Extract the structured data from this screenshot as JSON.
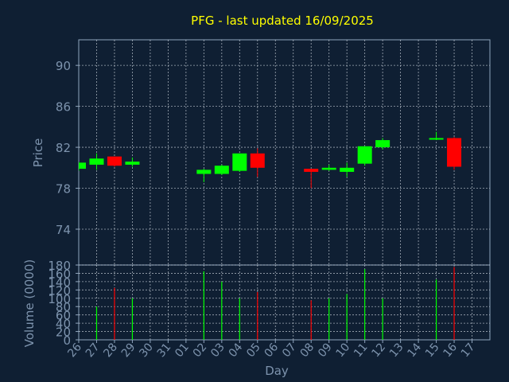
{
  "chart_data": {
    "type": "candlestick",
    "title": "PFG - last updated 16/09/2025",
    "xlabel": "Day",
    "price_panel": {
      "ylabel": "Price",
      "yticks": [
        74,
        78,
        82,
        86,
        90
      ],
      "ylim": [
        70.5,
        92.5
      ]
    },
    "volume_panel": {
      "ylabel": "Volume (0000)",
      "yticks": [
        0,
        20,
        40,
        60,
        80,
        100,
        120,
        140,
        160,
        180
      ],
      "ylim": [
        0,
        180
      ]
    },
    "x_labels": [
      "26",
      "27",
      "28",
      "29",
      "30",
      "31",
      "01",
      "02",
      "03",
      "04",
      "05",
      "06",
      "07",
      "08",
      "09",
      "10",
      "11",
      "12",
      "13",
      "14",
      "15",
      "16",
      "17"
    ],
    "up_color": "#00ff00",
    "down_color": "#ff0000",
    "candles": [
      {
        "day": "26",
        "open": 79.9,
        "high": 80.6,
        "low": 79.7,
        "close": 80.5,
        "volume": null,
        "dir": "up"
      },
      {
        "day": "27",
        "open": 80.3,
        "high": 81.4,
        "low": 79.8,
        "close": 80.9,
        "volume": 80,
        "dir": "up"
      },
      {
        "day": "28",
        "open": 81.1,
        "high": 81.1,
        "low": 80.1,
        "close": 80.2,
        "volume": 125,
        "dir": "down"
      },
      {
        "day": "29",
        "open": 80.3,
        "high": 81.0,
        "low": 80.1,
        "close": 80.6,
        "volume": 100,
        "dir": "up"
      },
      {
        "day": "02",
        "open": 79.4,
        "high": 79.9,
        "low": 78.6,
        "close": 79.8,
        "volume": 165,
        "dir": "up"
      },
      {
        "day": "03",
        "open": 79.4,
        "high": 80.3,
        "low": 79.3,
        "close": 80.2,
        "volume": 140,
        "dir": "up"
      },
      {
        "day": "04",
        "open": 79.7,
        "high": 81.4,
        "low": 79.6,
        "close": 81.4,
        "volume": 100,
        "dir": "up"
      },
      {
        "day": "05",
        "open": 81.4,
        "high": 81.9,
        "low": 79.1,
        "close": 80.0,
        "volume": 115,
        "dir": "down"
      },
      {
        "day": "08",
        "open": 79.9,
        "high": 79.9,
        "low": 78.0,
        "close": 79.6,
        "volume": 95,
        "dir": "down"
      },
      {
        "day": "09",
        "open": 79.8,
        "high": 80.3,
        "low": 79.7,
        "close": 80.0,
        "volume": 100,
        "dir": "up"
      },
      {
        "day": "10",
        "open": 79.6,
        "high": 80.5,
        "low": 79.1,
        "close": 80.0,
        "volume": 110,
        "dir": "up"
      },
      {
        "day": "11",
        "open": 80.4,
        "high": 82.1,
        "low": 80.2,
        "close": 82.1,
        "volume": 170,
        "dir": "up"
      },
      {
        "day": "12",
        "open": 82.0,
        "high": 82.9,
        "low": 81.8,
        "close": 82.7,
        "volume": 100,
        "dir": "up"
      },
      {
        "day": "15",
        "open": 82.8,
        "high": 83.5,
        "low": 82.7,
        "close": 82.9,
        "volume": 145,
        "dir": "up"
      },
      {
        "day": "16",
        "open": 82.9,
        "high": 83.0,
        "low": 79.8,
        "close": 80.1,
        "volume": 175,
        "dir": "down"
      }
    ]
  }
}
